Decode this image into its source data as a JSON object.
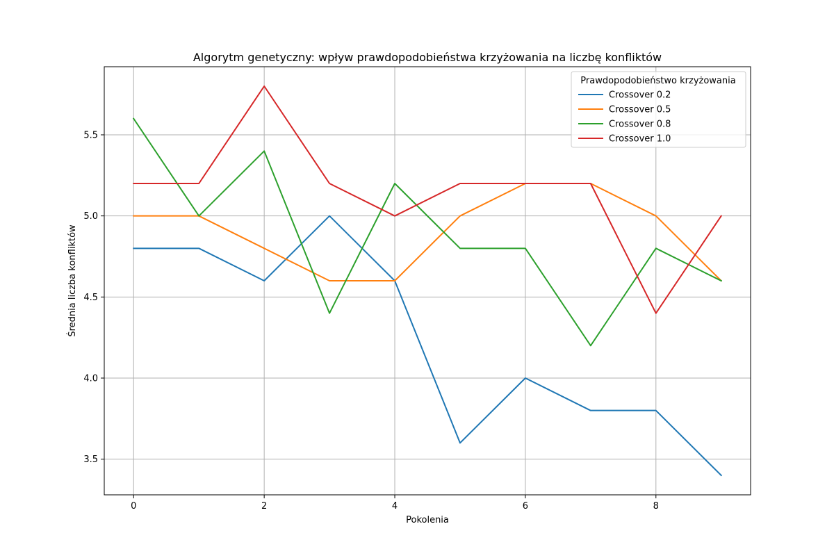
{
  "chart_data": {
    "type": "line",
    "title": "Algorytm genetyczny: wpływ prawdopodobieństwa krzyżowania na liczbę konfliktów",
    "xlabel": "Pokolenia",
    "ylabel": "Średnia liczba konfliktów",
    "x": [
      0,
      1,
      2,
      3,
      4,
      5,
      6,
      7,
      8,
      9
    ],
    "xlim": [
      -0.45,
      9.45
    ],
    "ylim": [
      3.28,
      5.92
    ],
    "xticks": [
      0,
      2,
      4,
      6,
      8
    ],
    "xtick_labels": [
      "0",
      "2",
      "4",
      "6",
      "8"
    ],
    "yticks": [
      3.5,
      4.0,
      4.5,
      5.0,
      5.5
    ],
    "ytick_labels": [
      "3.5",
      "4.0",
      "4.5",
      "5.0",
      "5.5"
    ],
    "grid": true,
    "legend": {
      "title": "Prawdopodobieństwo krzyżowania",
      "position": "top-right"
    },
    "series": [
      {
        "name": "Crossover 0.2",
        "color": "#1f77b4",
        "values": [
          4.8,
          4.8,
          4.6,
          5.0,
          4.6,
          3.6,
          4.0,
          3.8,
          3.8,
          3.4
        ]
      },
      {
        "name": "Crossover 0.5",
        "color": "#ff7f0e",
        "values": [
          5.0,
          5.0,
          4.8,
          4.6,
          4.6,
          5.0,
          5.2,
          5.2,
          5.0,
          4.6
        ]
      },
      {
        "name": "Crossover 0.8",
        "color": "#2ca02c",
        "values": [
          5.6,
          5.0,
          5.4,
          4.4,
          5.2,
          4.8,
          4.8,
          4.2,
          4.8,
          4.6
        ]
      },
      {
        "name": "Crossover 1.0",
        "color": "#d62728",
        "values": [
          5.2,
          5.2,
          5.8,
          5.2,
          5.0,
          5.2,
          5.2,
          5.2,
          4.4,
          5.0
        ]
      }
    ]
  }
}
